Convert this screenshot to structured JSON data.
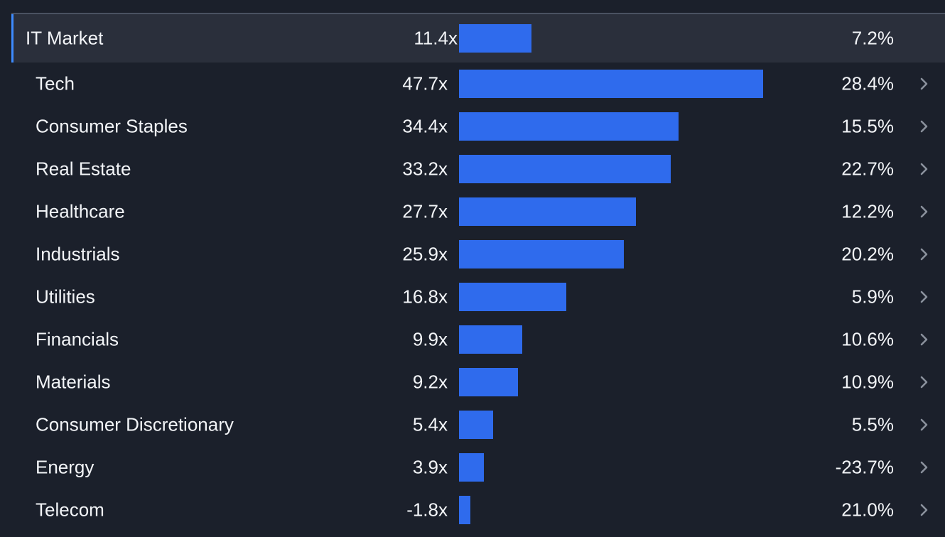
{
  "chart_data": {
    "type": "bar",
    "orientation": "horizontal",
    "title": "",
    "xlabel": "",
    "ylabel": "",
    "xlim": [
      0,
      47.7
    ],
    "grid": false,
    "market": {
      "name": "IT Market",
      "multiple": 11.4,
      "multiple_label": "11.4x",
      "growth": 7.2,
      "growth_label": "7.2%"
    },
    "categories": [
      "Tech",
      "Consumer Staples",
      "Real Estate",
      "Healthcare",
      "Industrials",
      "Utilities",
      "Financials",
      "Materials",
      "Consumer Discretionary",
      "Energy",
      "Telecom"
    ],
    "values": [
      47.7,
      34.4,
      33.2,
      27.7,
      25.9,
      16.8,
      9.9,
      9.2,
      5.4,
      3.9,
      -1.8
    ],
    "multiple_labels": [
      "47.7x",
      "34.4x",
      "33.2x",
      "27.7x",
      "25.9x",
      "16.8x",
      "9.9x",
      "9.2x",
      "5.4x",
      "3.9x",
      "-1.8x"
    ],
    "growth": [
      28.4,
      15.5,
      22.7,
      12.2,
      20.2,
      5.9,
      10.6,
      10.9,
      5.5,
      -23.7,
      21.0
    ],
    "growth_labels": [
      "28.4%",
      "15.5%",
      "22.7%",
      "12.2%",
      "20.2%",
      "5.9%",
      "10.6%",
      "10.9%",
      "5.5%",
      "-23.7%",
      "21.0%"
    ]
  },
  "colors": {
    "background": "#1b202b",
    "market_row": "#2a2f3b",
    "accent_left_border": "#3d8bff",
    "bar": "#2f6bed",
    "text": "#f2f4f7",
    "chevron": "#8a919c"
  },
  "icons": {
    "row_chevron": "chevron-right-icon"
  }
}
